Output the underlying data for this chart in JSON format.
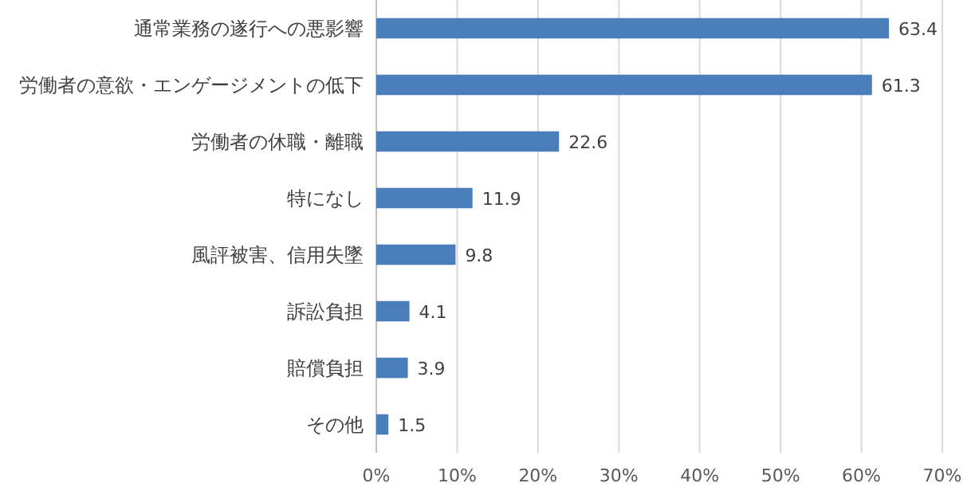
{
  "chart_data": {
    "type": "bar",
    "orientation": "horizontal",
    "categories": [
      "通常業務の遂行への悪影響",
      "労働者の意欲・エンゲージメントの低下",
      "労働者の休職・離職",
      "特になし",
      "風評被害、信用失墜",
      "訴訟負担",
      "賠償負担",
      "その他"
    ],
    "values": [
      63.4,
      61.3,
      22.6,
      11.9,
      9.8,
      4.1,
      3.9,
      1.5
    ],
    "color": "#4a7ebb",
    "xlim": [
      0,
      70
    ],
    "xticks": [
      {
        "value": 0,
        "label": "0%"
      },
      {
        "value": 10,
        "label": "10%"
      },
      {
        "value": 20,
        "label": "20%"
      },
      {
        "value": 30,
        "label": "30%"
      },
      {
        "value": 40,
        "label": "40%"
      },
      {
        "value": 50,
        "label": "50%"
      },
      {
        "value": 60,
        "label": "60%"
      },
      {
        "value": 70,
        "label": "70%"
      }
    ],
    "grid": "x",
    "data_labels": true
  }
}
